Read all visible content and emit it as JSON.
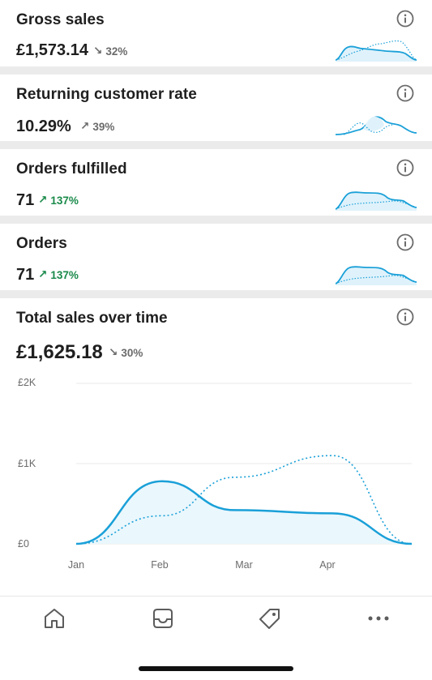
{
  "metrics": [
    {
      "title": "Gross sales",
      "value": "£1,573.14",
      "delta": "32%",
      "direction": "down",
      "tone": "gray"
    },
    {
      "title": "Returning customer rate",
      "value": "10.29%",
      "delta": "39%",
      "direction": "up",
      "tone": "gray"
    },
    {
      "title": "Orders fulfilled",
      "value": "71",
      "delta": "137%",
      "direction": "up",
      "tone": "green"
    },
    {
      "title": "Orders",
      "value": "71",
      "delta": "137%",
      "direction": "up",
      "tone": "green"
    }
  ],
  "total_sales": {
    "title": "Total sales over time",
    "value": "£1,625.18",
    "delta": "30%",
    "direction": "down"
  },
  "chart_data": {
    "type": "line",
    "x_labels": [
      "Jan",
      "Feb",
      "Mar",
      "Apr"
    ],
    "y_ticks": [
      "£2K",
      "£1K",
      "£0"
    ],
    "ylim": [
      0,
      2000
    ],
    "series": [
      {
        "style": "solid",
        "values": [
          0,
          780,
          420,
          380,
          0
        ]
      },
      {
        "style": "dotted",
        "values": [
          0,
          350,
          830,
          1100,
          0
        ]
      }
    ],
    "grid": true
  },
  "colors": {
    "accent": "#1aa0d8",
    "positive": "#1a8a4a",
    "muted": "#6b6b6b"
  },
  "tabbar": {
    "items": [
      "home-icon",
      "inbox-icon",
      "tag-icon",
      "more-icon"
    ]
  }
}
